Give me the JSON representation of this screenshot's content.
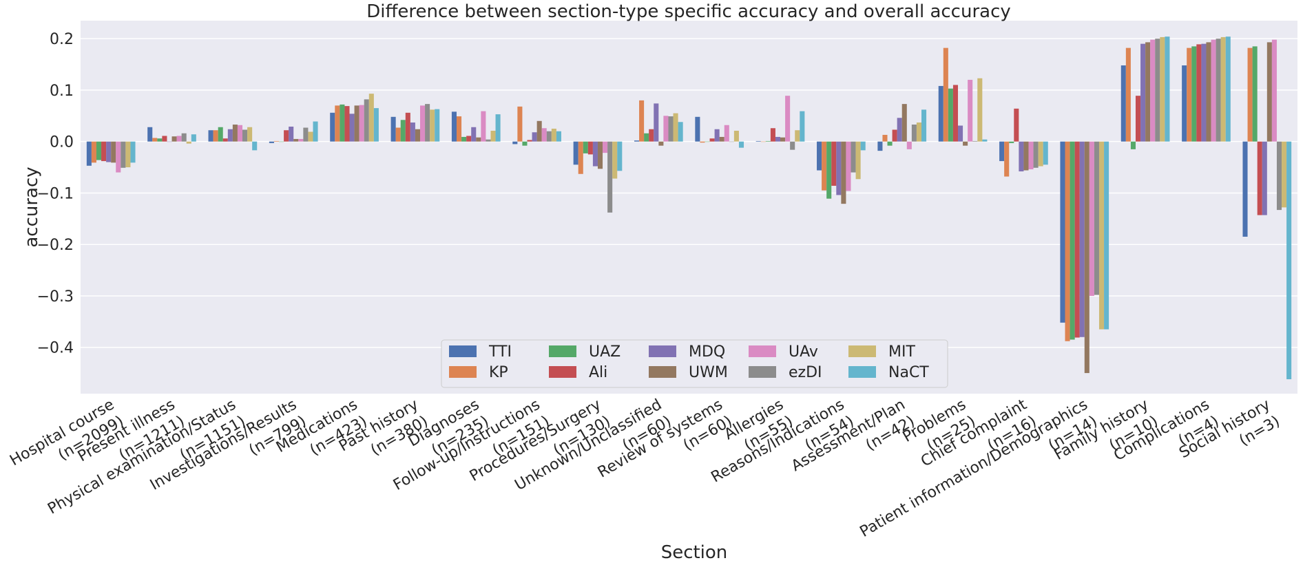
{
  "chart_data": {
    "type": "bar",
    "title": "Difference between section-type specific accuracy and overall accuracy",
    "xlabel": "Section",
    "ylabel": "accuracy",
    "ylim": [
      -0.49,
      0.235
    ],
    "yticks": [
      0.2,
      0.1,
      0.0,
      -0.1,
      -0.2,
      -0.3,
      -0.4
    ],
    "ytick_labels": [
      "0.2",
      "0.1",
      "0.0",
      "−0.1",
      "−0.2",
      "−0.3",
      "−0.4"
    ],
    "grid": true,
    "legend_position": "lower-center",
    "legend_columns": 5,
    "categories": [
      [
        "Hospital course",
        "(n=2099)"
      ],
      [
        "Present illness",
        "(n=1211)"
      ],
      [
        "Physical examination/Status",
        "(n=1151)"
      ],
      [
        "Investigations/Results",
        "(n=799)"
      ],
      [
        "Medications",
        "(n=423)"
      ],
      [
        "Past history",
        "(n=380)"
      ],
      [
        "Diagnoses",
        "(n=235)"
      ],
      [
        "Follow-up/Instructions",
        "(n=151)"
      ],
      [
        "Procedures/Surgery",
        "(n=130)"
      ],
      [
        "Unknown/Unclassified",
        "(n=60)"
      ],
      [
        "Review of systems",
        "(n=60)"
      ],
      [
        "Allergies",
        "(n=55)"
      ],
      [
        "Reasons/Indications",
        "(n=54)"
      ],
      [
        "Assessment/Plan",
        "(n=42)"
      ],
      [
        "Problems",
        "(n=25)"
      ],
      [
        "Chief complaint",
        "(n=16)"
      ],
      [
        "Patient information/Demographics",
        "(n=14)"
      ],
      [
        "Family history",
        "(n=10)"
      ],
      [
        "Complications",
        "(n=4)"
      ],
      [
        "Social history",
        "(n=3)"
      ]
    ],
    "series": [
      {
        "name": "TTI",
        "color": "#4c72b0",
        "values": [
          -0.047,
          0.028,
          0.022,
          -0.003,
          0.056,
          0.048,
          0.058,
          -0.005,
          -0.045,
          0.002,
          0.048,
          0.001,
          -0.056,
          -0.018,
          0.108,
          -0.038,
          -0.352,
          0.148,
          0.148,
          -0.185
        ]
      },
      {
        "name": "KP",
        "color": "#dd8452",
        "values": [
          -0.041,
          0.007,
          0.022,
          0.001,
          0.07,
          0.027,
          0.049,
          0.068,
          -0.063,
          0.08,
          -0.002,
          0.0,
          -0.095,
          0.013,
          0.182,
          -0.068,
          -0.388,
          0.182,
          0.182,
          0.182
        ]
      },
      {
        "name": "UAZ",
        "color": "#55a868",
        "values": [
          -0.036,
          0.006,
          0.028,
          0.0,
          0.072,
          0.042,
          0.009,
          -0.008,
          -0.023,
          0.016,
          0.0,
          0.001,
          -0.111,
          -0.008,
          0.103,
          -0.003,
          -0.385,
          -0.015,
          0.185,
          0.185
        ]
      },
      {
        "name": "Ali",
        "color": "#c44e52",
        "values": [
          -0.038,
          0.011,
          0.006,
          0.022,
          0.069,
          0.056,
          0.011,
          0.003,
          -0.025,
          0.024,
          0.006,
          0.026,
          -0.086,
          0.023,
          0.11,
          0.064,
          -0.381,
          0.089,
          0.189,
          -0.143
        ]
      },
      {
        "name": "MDQ",
        "color": "#8172b3",
        "values": [
          -0.04,
          0.0,
          0.024,
          0.029,
          0.054,
          0.037,
          0.028,
          0.018,
          -0.048,
          0.074,
          0.024,
          0.009,
          -0.104,
          0.046,
          0.031,
          -0.058,
          -0.38,
          0.19,
          0.19,
          -0.143
        ]
      },
      {
        "name": "UWM",
        "color": "#937860",
        "values": [
          -0.041,
          0.01,
          0.033,
          0.005,
          0.07,
          0.024,
          0.008,
          0.04,
          -0.053,
          -0.008,
          0.009,
          0.008,
          -0.121,
          0.073,
          -0.008,
          -0.056,
          -0.45,
          0.193,
          0.193,
          0.193
        ]
      },
      {
        "name": "UAv",
        "color": "#da8bc3",
        "values": [
          -0.06,
          0.011,
          0.032,
          0.005,
          0.071,
          0.07,
          0.059,
          0.026,
          -0.022,
          0.05,
          0.032,
          0.089,
          -0.096,
          -0.015,
          0.12,
          -0.054,
          -0.3,
          0.198,
          0.198,
          0.198
        ]
      },
      {
        "name": "ezDI",
        "color": "#8c8c8c",
        "values": [
          -0.051,
          0.016,
          0.023,
          0.027,
          0.082,
          0.073,
          0.004,
          0.02,
          -0.138,
          0.049,
          0.0,
          -0.016,
          -0.06,
          0.033,
          0.001,
          -0.051,
          -0.298,
          0.2,
          0.2,
          -0.133
        ]
      },
      {
        "name": "MIT",
        "color": "#ccb974",
        "values": [
          -0.05,
          -0.004,
          0.028,
          0.019,
          0.093,
          0.062,
          0.021,
          0.025,
          -0.072,
          0.055,
          0.021,
          0.022,
          -0.073,
          0.037,
          0.123,
          -0.048,
          -0.365,
          0.203,
          0.203,
          -0.128
        ]
      },
      {
        "name": "NaCT",
        "color": "#64b5cd",
        "values": [
          -0.041,
          0.014,
          -0.017,
          0.039,
          0.065,
          0.063,
          0.053,
          0.02,
          -0.057,
          0.038,
          -0.012,
          0.059,
          -0.017,
          0.062,
          0.004,
          -0.045,
          -0.365,
          0.204,
          0.204,
          -0.462
        ]
      }
    ]
  }
}
